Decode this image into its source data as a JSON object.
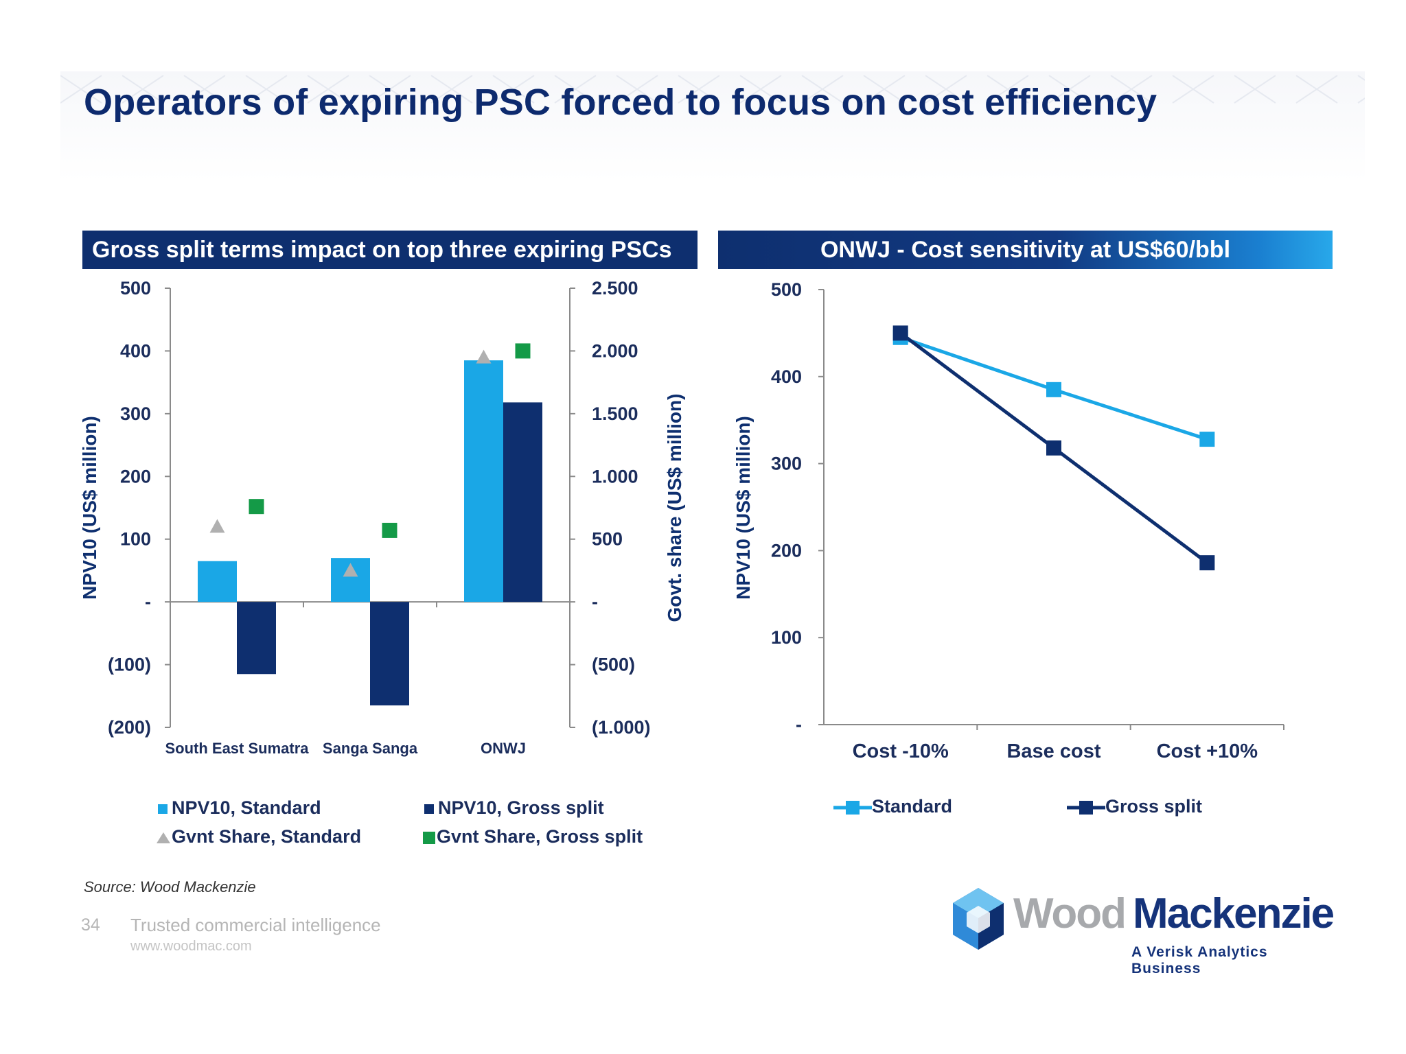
{
  "slide": {
    "title": "Operators of expiring PSC forced to focus on cost efficiency",
    "source": "Source: Wood Mackenzie",
    "page_number": "34",
    "tagline": "Trusted commercial intelligence",
    "website": "www.woodmac.com",
    "logo": {
      "name_part1": "Wood",
      "name_part2": "Mackenzie",
      "subtitle": "A Verisk Analytics Business"
    }
  },
  "colors": {
    "navy": "#0e2f6f",
    "standard": "#1aa7e6",
    "gross_split": "#0e2f6f",
    "govt_standard": "#b0b0b0",
    "govt_gross": "#149a47",
    "axis_text": "#1b2d5c"
  },
  "chart_data": [
    {
      "type": "bar",
      "title": "Gross split terms impact on top three expiring PSCs",
      "categories": [
        "South East Sumatra",
        "Sanga Sanga",
        "ONWJ"
      ],
      "ylabel": "NPV10 (US$ million)",
      "ylabel_right": "Govt. share (US$ million)",
      "ylim": [
        -200,
        500
      ],
      "y2lim": [
        -1000,
        2500
      ],
      "yticks": [
        500,
        400,
        300,
        200,
        100,
        0,
        -100,
        -200
      ],
      "ytick_labels": [
        "500",
        "400",
        "300",
        "200",
        "100",
        "-",
        "(100)",
        "(200)"
      ],
      "y2ticks": [
        2500,
        2000,
        1500,
        1000,
        500,
        0,
        -500,
        -1000
      ],
      "y2tick_labels": [
        "2.500",
        "2.000",
        "1.500",
        "1.000",
        "500",
        "-",
        "(500)",
        "(1.000)"
      ],
      "series": [
        {
          "name": "NPV10, Standard",
          "kind": "bar",
          "axis": "left",
          "values": [
            65,
            70,
            385
          ]
        },
        {
          "name": "NPV10, Gross split",
          "kind": "bar",
          "axis": "left",
          "values": [
            -115,
            -165,
            318
          ]
        },
        {
          "name": "Gvnt Share, Standard",
          "kind": "marker",
          "marker": "triangle",
          "axis": "right",
          "values": [
            600,
            250,
            1950
          ]
        },
        {
          "name": "Gvnt Share, Gross split",
          "kind": "marker",
          "marker": "square",
          "axis": "right",
          "values": [
            760,
            570,
            2000
          ]
        }
      ],
      "legend_position": "bottom",
      "grid": false
    },
    {
      "type": "line",
      "title": "ONWJ - Cost sensitivity at US$60/bbl",
      "categories": [
        "Cost -10%",
        "Base cost",
        "Cost +10%"
      ],
      "ylabel": "NPV10 (US$ million)",
      "ylim": [
        0,
        500
      ],
      "yticks": [
        500,
        400,
        300,
        200,
        100,
        0
      ],
      "ytick_labels": [
        "500",
        "400",
        "300",
        "200",
        "100",
        "-"
      ],
      "series": [
        {
          "name": "Standard",
          "values": [
            445,
            385,
            328
          ]
        },
        {
          "name": "Gross split",
          "values": [
            450,
            318,
            186
          ]
        }
      ],
      "legend_position": "bottom",
      "grid": false
    }
  ]
}
